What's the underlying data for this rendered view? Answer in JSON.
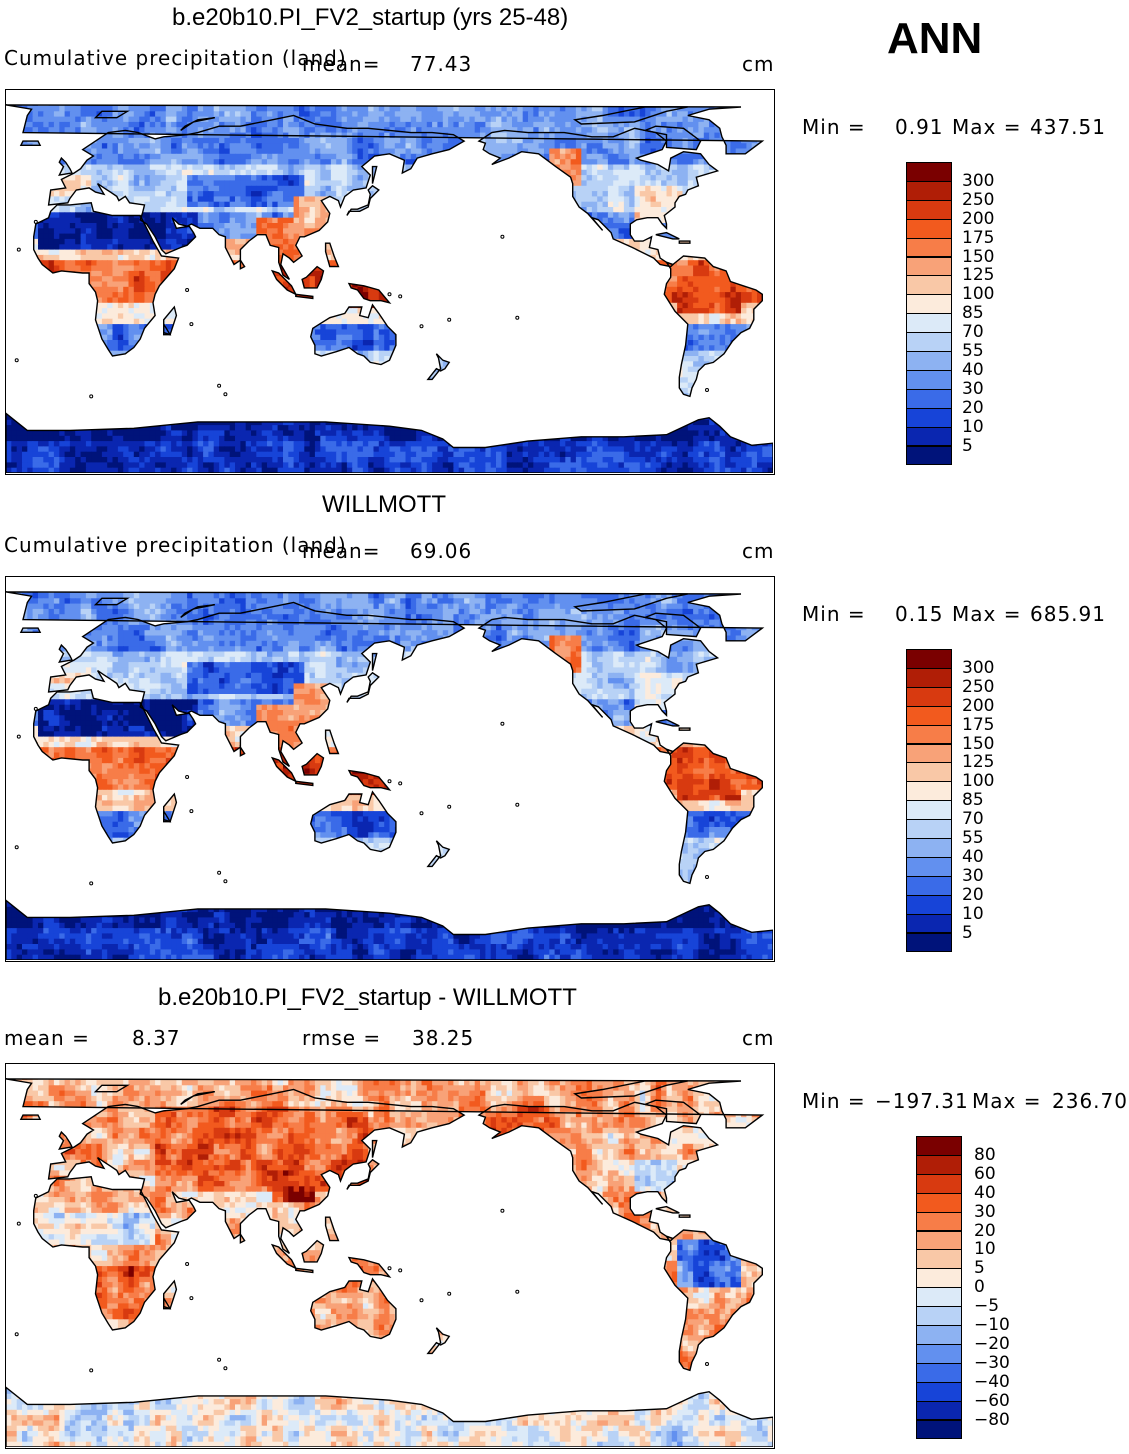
{
  "season": "ANN",
  "panels": [
    {
      "title": "b.e20b10.PI_FV2_startup (yrs 25-48)",
      "left_label": "Cumulative precipitation (land)",
      "mean_label": "mean=",
      "mean_value": "77.43",
      "units": "cm",
      "min_text": "Min =",
      "min_value": "0.91",
      "max_text": "Max =",
      "max_value": "437.51",
      "levels": [
        "300",
        "250",
        "200",
        "175",
        "150",
        "125",
        "100",
        "85",
        "70",
        "55",
        "40",
        "30",
        "20",
        "10",
        "5"
      ]
    },
    {
      "title": "WILLMOTT",
      "left_label": "Cumulative precipitation (land)",
      "mean_label": "mean=",
      "mean_value": "69.06",
      "units": "cm",
      "min_text": "Min =",
      "min_value": "0.15",
      "max_text": "Max =",
      "max_value": "685.91",
      "levels": [
        "300",
        "250",
        "200",
        "175",
        "150",
        "125",
        "100",
        "85",
        "70",
        "55",
        "40",
        "30",
        "20",
        "10",
        "5"
      ]
    },
    {
      "title": "b.e20b10.PI_FV2_startup - WILLMOTT",
      "mean_label": "mean =",
      "mean_value": "8.37",
      "rmse_label": "rmse =",
      "rmse_value": "38.25",
      "units": "cm",
      "min_text": "Min =",
      "min_value": "−197.31",
      "max_text": "Max =",
      "max_value": "236.70",
      "levels": [
        "80",
        "60",
        "40",
        "30",
        "20",
        "10",
        "5",
        "0",
        "−5",
        "−10",
        "−20",
        "−30",
        "−40",
        "−60",
        "−80"
      ]
    }
  ],
  "palette": [
    "#7a0000",
    "#b01e06",
    "#d83a10",
    "#f25a1e",
    "#f77d48",
    "#f8a278",
    "#f9c8a7",
    "#fcebdc",
    "#dceaf8",
    "#b8d2f6",
    "#8db2f2",
    "#6290ef",
    "#3a6be8",
    "#1744d8",
    "#0a26b0",
    "#00137a"
  ],
  "colors": {
    "ocean": "#ffffff",
    "coast": "#000000"
  }
}
